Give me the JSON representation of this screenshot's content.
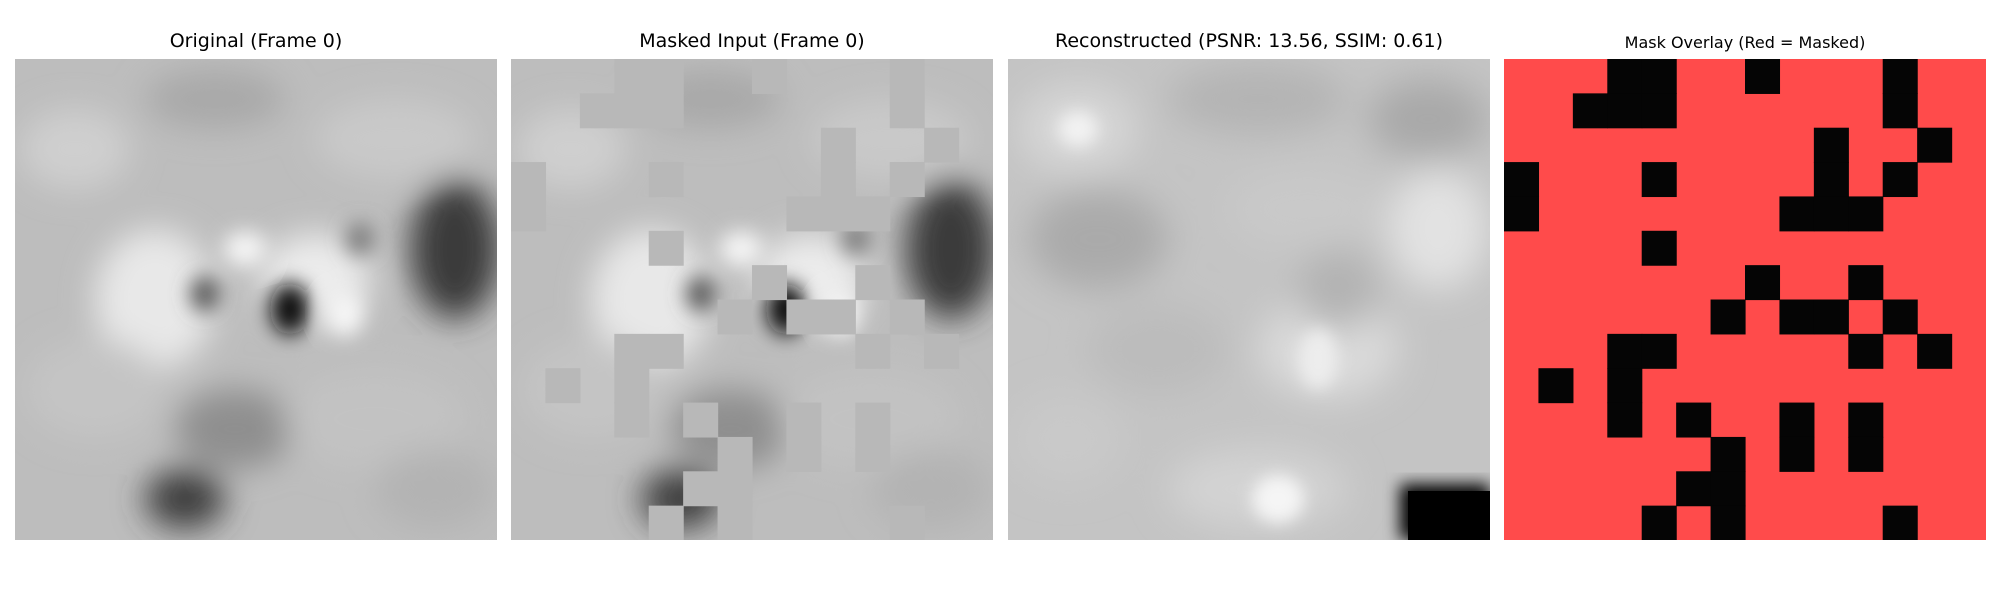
{
  "titles": {
    "original": "Original (Frame 0)",
    "masked": "Masked Input (Frame 0)",
    "reconstructed": "Reconstructed (PSNR: 13.56, SSIM: 0.61)",
    "overlay": "Mask Overlay (Red = Masked)"
  },
  "colors": {
    "background_gray": "#bfbfbf",
    "mask_fill_gray": "#b8b8b8",
    "overlay_red": "#ff4b4b",
    "overlay_black": "#050505"
  }
}
